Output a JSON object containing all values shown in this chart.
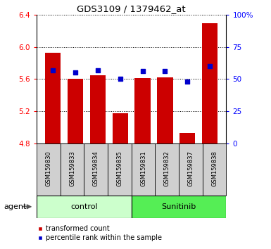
{
  "title": "GDS3109 / 1379462_at",
  "samples": [
    "GSM159830",
    "GSM159833",
    "GSM159834",
    "GSM159835",
    "GSM159831",
    "GSM159832",
    "GSM159837",
    "GSM159838"
  ],
  "groups": [
    "control",
    "control",
    "control",
    "control",
    "Sunitinib",
    "Sunitinib",
    "Sunitinib",
    "Sunitinib"
  ],
  "red_values": [
    5.93,
    5.6,
    5.65,
    5.17,
    5.61,
    5.62,
    4.93,
    6.3
  ],
  "blue_percentiles": [
    57,
    55,
    57,
    50,
    56,
    56,
    48,
    60
  ],
  "y_min": 4.8,
  "y_max": 6.4,
  "y_ticks": [
    4.8,
    5.2,
    5.6,
    6.0,
    6.4
  ],
  "right_y_ticks": [
    0,
    25,
    50,
    75,
    100
  ],
  "right_y_labels": [
    "0",
    "25",
    "50",
    "75",
    "100%"
  ],
  "control_color_light": "#ccffcc",
  "sunitinib_color_dark": "#55ee55",
  "bar_color": "#cc0000",
  "blue_color": "#0000cc",
  "bar_width": 0.7,
  "base_value": 4.8,
  "xlabel_agent": "agent",
  "legend_red": "transformed count",
  "legend_blue": "percentile rank within the sample",
  "gray_box": "#d0d0d0",
  "bg_white": "#ffffff"
}
